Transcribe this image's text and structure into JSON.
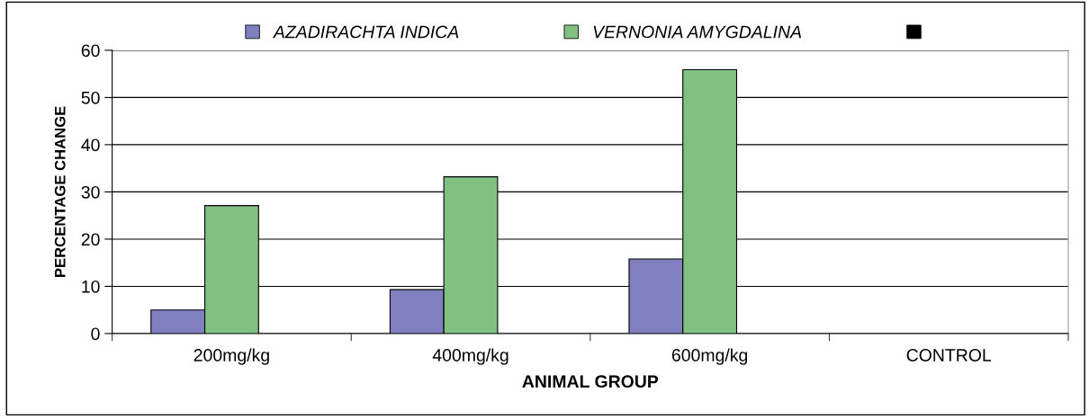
{
  "chart_data": {
    "type": "bar",
    "xlabel": "ANIMAL GROUP",
    "ylabel": "PERCENTAGE CHANGE",
    "categories": [
      "200mg/kg",
      "400mg/kg",
      "600mg/kg",
      "CONTROL"
    ],
    "series": [
      {
        "name": "AZADIRACHTA INDICA",
        "color": "#8080c0",
        "values": [
          5.0,
          9.3,
          15.8,
          null
        ]
      },
      {
        "name": "VERNONIA AMYGDALINA",
        "color": "#80c080",
        "values": [
          27.1,
          33.2,
          55.9,
          null
        ]
      },
      {
        "color": "#000000",
        "values": [
          null,
          null,
          null,
          null
        ]
      }
    ],
    "ylim": [
      0,
      60
    ],
    "yticks": [
      0,
      10,
      20,
      30,
      40,
      50,
      60
    ],
    "grid": "y",
    "legend": "top"
  }
}
